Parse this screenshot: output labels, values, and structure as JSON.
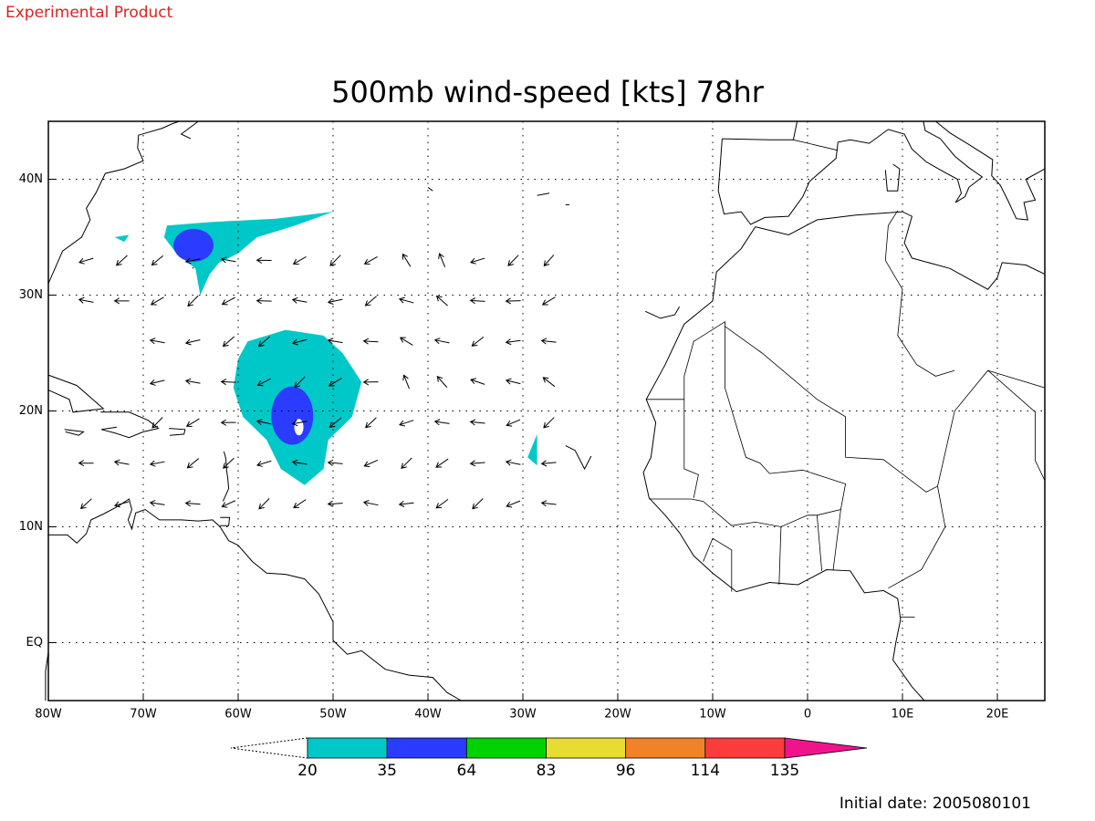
{
  "header": {
    "label": "Experimental Product"
  },
  "map": {
    "title": "500mb wind-speed [kts] 78hr",
    "lon_range": [
      -80,
      25
    ],
    "lat_range": [
      -5,
      45
    ],
    "lon_ticks": [
      {
        "value": -80,
        "label": "80W"
      },
      {
        "value": -70,
        "label": "70W"
      },
      {
        "value": -60,
        "label": "60W"
      },
      {
        "value": -50,
        "label": "50W"
      },
      {
        "value": -40,
        "label": "40W"
      },
      {
        "value": -30,
        "label": "30W"
      },
      {
        "value": -20,
        "label": "20W"
      },
      {
        "value": -10,
        "label": "10W"
      },
      0,
      {
        "value": 10,
        "label": "10E"
      },
      {
        "value": 20,
        "label": "20E"
      }
    ],
    "lat_ticks": [
      {
        "value": 40,
        "label": "40N"
      },
      {
        "value": 30,
        "label": "30N"
      },
      {
        "value": 20,
        "label": "20N"
      },
      {
        "value": 10,
        "label": "10N"
      },
      {
        "value": 0,
        "label": "EQ"
      }
    ]
  },
  "colorbar": {
    "levels": [
      20,
      35,
      64,
      83,
      96,
      114,
      135
    ],
    "colors": [
      "#00c8c8",
      "#2a3cff",
      "#00d200",
      "#e6dc32",
      "#f08228",
      "#fa3c3c",
      "#f0148c"
    ]
  },
  "footer": {
    "label": "Initial date: 2005080101"
  }
}
